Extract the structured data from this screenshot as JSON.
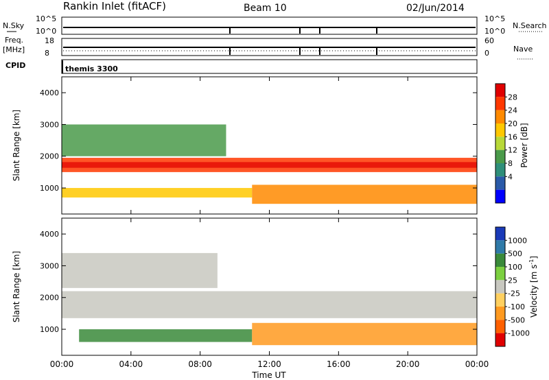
{
  "header": {
    "title": "Rankin Inlet (fitACF)",
    "beam": "Beam 10",
    "date": "02/Jun/2014"
  },
  "nsky_panel": {
    "left_label": "N.Sky",
    "left_ticks": [
      "10^5",
      "10^0"
    ],
    "right_label": "N.Search",
    "right_ticks": [
      "10^5",
      "10^0"
    ]
  },
  "freq_panel": {
    "left_label_line1": "Freq.",
    "left_label_line2": "[MHz]",
    "left_ticks": [
      "18",
      "8"
    ],
    "right_label": "Nave",
    "right_ticks": [
      "60",
      "0"
    ]
  },
  "cpid_panel": {
    "label": "CPID",
    "value": "themis 3300"
  },
  "time_axis": {
    "xlabel": "Time UT",
    "ticks": [
      "00:00",
      "04:00",
      "08:00",
      "12:00",
      "16:00",
      "20:00",
      "00:00"
    ]
  },
  "range_axis": {
    "ylabel": "Slant Range [km]",
    "ticks": [
      "1000",
      "2000",
      "3000",
      "4000"
    ]
  },
  "power_colorbar": {
    "label": "Power [dB]",
    "ticks": [
      "28",
      "24",
      "20",
      "16",
      "12",
      "8",
      "4"
    ],
    "colors": [
      "#e00000",
      "#ff3800",
      "#ff8a00",
      "#ffc800",
      "#b8d838",
      "#4a9a4a",
      "#2f8f7a",
      "#2a5aa8",
      "#0000ff"
    ]
  },
  "velocity_colorbar": {
    "label": "Velocity [m s",
    "label_sup": "-1",
    "label_end": "]",
    "ticks": [
      "1000",
      "500",
      "100",
      "25",
      "-25",
      "-100",
      "-500",
      "-1000"
    ],
    "colors": [
      "#1a3ab8",
      "#2f7aa8",
      "#3a8a3a",
      "#7cd040",
      "#c8c8c0",
      "#ffd060",
      "#ff9a20",
      "#ff6000",
      "#e00000"
    ]
  },
  "chart_data": [
    {
      "type": "heatmap",
      "name": "Power",
      "x_range_hours": [
        0,
        24
      ],
      "y_range_km": [
        180,
        4500
      ],
      "bands": [
        {
          "t_start": 0.0,
          "t_end": 24.0,
          "km_low": 1500,
          "km_high": 1950,
          "level_db": 26
        },
        {
          "t_start": 0.0,
          "t_end": 11.0,
          "km_low": 700,
          "km_high": 1000,
          "level_db": 18
        },
        {
          "t_start": 11.0,
          "t_end": 24.0,
          "km_low": 500,
          "km_high": 1100,
          "level_db": 22
        },
        {
          "t_start": 0.0,
          "t_end": 9.5,
          "km_low": 2000,
          "km_high": 3000,
          "level_db": 10
        }
      ]
    },
    {
      "type": "heatmap",
      "name": "Velocity",
      "x_range_hours": [
        0,
        24
      ],
      "y_range_km": [
        180,
        4500
      ],
      "bands": [
        {
          "t_start": 0.0,
          "t_end": 24.0,
          "km_low": 1350,
          "km_high": 2200,
          "level_ms": 0
        },
        {
          "t_start": 1.0,
          "t_end": 11.0,
          "km_low": 600,
          "km_high": 1000,
          "level_ms": 80
        },
        {
          "t_start": 11.0,
          "t_end": 24.0,
          "km_low": 500,
          "km_high": 1200,
          "level_ms": -150
        },
        {
          "t_start": 0.0,
          "t_end": 9.0,
          "km_low": 2300,
          "km_high": 3400,
          "level_ms": 0
        }
      ]
    }
  ]
}
